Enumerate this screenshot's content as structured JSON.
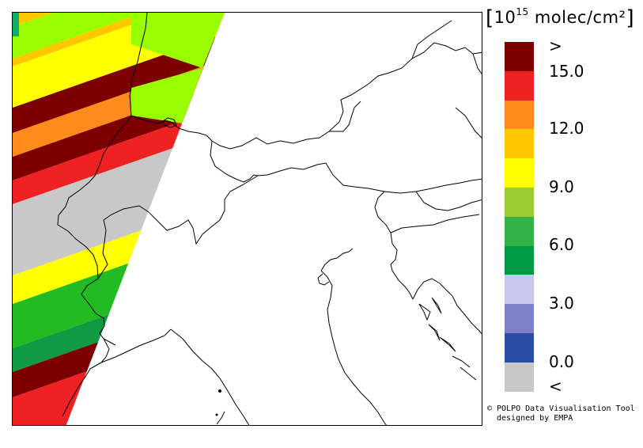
{
  "legend": {
    "unit_prefix": "10",
    "unit_exp": "15",
    "unit_suffix": " molec/cm²",
    "bins": [
      {
        "color": "#7d0000"
      },
      {
        "color": "#ee2222"
      },
      {
        "color": "#ff8a1e"
      },
      {
        "color": "#ffc800"
      },
      {
        "color": "#ffff00"
      },
      {
        "color": "#99cc33"
      },
      {
        "color": "#33b24a"
      },
      {
        "color": "#009944"
      },
      {
        "color": "#c8c8ee"
      },
      {
        "color": "#7f7fc8"
      },
      {
        "color": "#2a4ea3"
      },
      {
        "color": "#c8c8c8"
      }
    ],
    "labels": [
      ">",
      "15.0",
      "12.0",
      "9.0",
      "6.0",
      "3.0",
      "0.0",
      "<"
    ]
  },
  "credit": {
    "line1": "© POLPO Data Visualisation Tool",
    "line2": "designed by EMPA"
  },
  "swath": {
    "colors": {
      "dark_red": "#7d0000",
      "red": "#ee2222",
      "orange": "#ff8a1e",
      "gold": "#ffc800",
      "yellow": "#ffff00",
      "lime": "#99ff00",
      "green": "#22bb22",
      "dark_green": "#119944",
      "grey": "#c8c8c8",
      "teal": "#11aa66"
    }
  }
}
